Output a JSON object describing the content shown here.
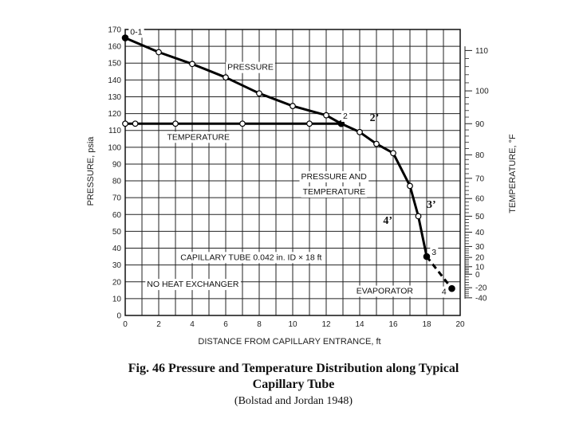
{
  "chart_data": {
    "type": "line",
    "x_label": "DISTANCE FROM CAPILLARY ENTRANCE, ft",
    "y_label": "PRESSURE, psia",
    "y2_label": "TEMPERATURE, °F",
    "x_ticks": [
      "0",
      "2",
      "4",
      "6",
      "8",
      "10",
      "12",
      "14",
      "16",
      "18",
      "20"
    ],
    "y_ticks": [
      "0",
      "10",
      "20",
      "30",
      "40",
      "50",
      "60",
      "70",
      "80",
      "90",
      "100",
      "110",
      "120",
      "130",
      "140",
      "150",
      "160",
      "170"
    ],
    "y2_ticks": [
      {
        "label": "110",
        "p": 157.5
      },
      {
        "label": "100",
        "p": 133.5
      },
      {
        "label": "90",
        "p": 114
      },
      {
        "label": "80",
        "p": 95.5
      },
      {
        "label": "70",
        "p": 81.5
      },
      {
        "label": "60",
        "p": 69.5
      },
      {
        "label": "50",
        "p": 59
      },
      {
        "label": "40",
        "p": 49.5
      },
      {
        "label": "30",
        "p": 41
      },
      {
        "label": "20",
        "p": 34.5
      },
      {
        "label": "10",
        "p": 29
      },
      {
        "label": "0",
        "p": 24.5
      },
      {
        "label": "-20",
        "p": 16.5
      },
      {
        "label": "-40",
        "p": 10.5
      }
    ],
    "xlim": [
      0,
      20
    ],
    "ylim": [
      0,
      170
    ],
    "grid": true,
    "series": [
      {
        "name": "PRESSURE",
        "style": "solid",
        "points": [
          [
            0,
            165
          ],
          [
            2,
            156.5
          ],
          [
            4,
            149.5
          ],
          [
            6,
            141.5
          ],
          [
            8,
            132
          ],
          [
            10,
            124.5
          ],
          [
            12,
            119
          ],
          [
            12.9,
            114
          ],
          [
            14,
            109
          ],
          [
            15,
            102
          ],
          [
            16,
            96.5
          ],
          [
            17,
            77
          ],
          [
            17.5,
            59
          ],
          [
            18,
            35
          ]
        ]
      },
      {
        "name": "TEMPERATURE",
        "style": "solid",
        "points": [
          [
            0,
            114
          ],
          [
            0.6,
            114
          ],
          [
            3,
            114
          ],
          [
            7,
            114
          ],
          [
            11,
            114
          ],
          [
            12.9,
            114
          ]
        ]
      },
      {
        "name": "",
        "style": "dashed",
        "points": [
          [
            18,
            35
          ],
          [
            19.5,
            16
          ]
        ]
      }
    ],
    "markers": [
      [
        0,
        165
      ],
      [
        2,
        156.5
      ],
      [
        4,
        149.5
      ],
      [
        6,
        141.5
      ],
      [
        8,
        132
      ],
      [
        10,
        124.5
      ],
      [
        12,
        119
      ],
      [
        0,
        114
      ],
      [
        0.6,
        114
      ],
      [
        3,
        114
      ],
      [
        7,
        114
      ],
      [
        11,
        114
      ],
      [
        14,
        109
      ],
      [
        15,
        102
      ],
      [
        16,
        96.5
      ],
      [
        17,
        77
      ],
      [
        17.5,
        59
      ]
    ],
    "filled_markers": [
      [
        0,
        165
      ],
      [
        12.9,
        114
      ],
      [
        18,
        35
      ],
      [
        19.5,
        16
      ]
    ],
    "annotations": [
      {
        "text": "0-1",
        "x": 0.3,
        "y": 167,
        "style": "sans",
        "bg": true
      },
      {
        "text": "PRESSURE",
        "x": 6.1,
        "y": 146,
        "style": "sans",
        "bg": true
      },
      {
        "text": "TEMPERATURE",
        "x": 2.5,
        "y": 104.5,
        "style": "sans",
        "bg": true
      },
      {
        "text": "2",
        "x": 13.0,
        "y": 117,
        "style": "sans",
        "bg": true
      },
      {
        "text": "2’",
        "x": 14.6,
        "y": 115.5,
        "style": "serif",
        "bg": false
      },
      {
        "text": "PRESSURE AND",
        "x": 10.5,
        "y": 81,
        "style": "sans",
        "bg": true
      },
      {
        "text": "TEMPERATURE",
        "x": 10.6,
        "y": 72,
        "style": "sans",
        "bg": true
      },
      {
        "text": "3’",
        "x": 18.0,
        "y": 64,
        "style": "serif",
        "bg": false
      },
      {
        "text": "4’",
        "x": 15.4,
        "y": 54.5,
        "style": "serif",
        "bg": false
      },
      {
        "text": "CAPILLARY TUBE 0.042 in. ID × 18 ft",
        "x": 3.3,
        "y": 33,
        "style": "sans",
        "bg": true
      },
      {
        "text": "3",
        "x": 18.3,
        "y": 36,
        "style": "sans",
        "bg": true
      },
      {
        "text": "NO HEAT EXCHANGER",
        "x": 1.3,
        "y": 17,
        "style": "sans",
        "bg": true
      },
      {
        "text": "EVAPORATOR",
        "x": 13.8,
        "y": 13,
        "style": "sans",
        "bg": true
      },
      {
        "text": "4",
        "x": 18.9,
        "y": 12.5,
        "style": "sans",
        "bg": true
      }
    ]
  },
  "caption": {
    "line1": "Fig. 46    Pressure and Temperature Distribution along Typical",
    "line2": "Capillary Tube",
    "line3": "(Bolstad and Jordan 1948)"
  }
}
